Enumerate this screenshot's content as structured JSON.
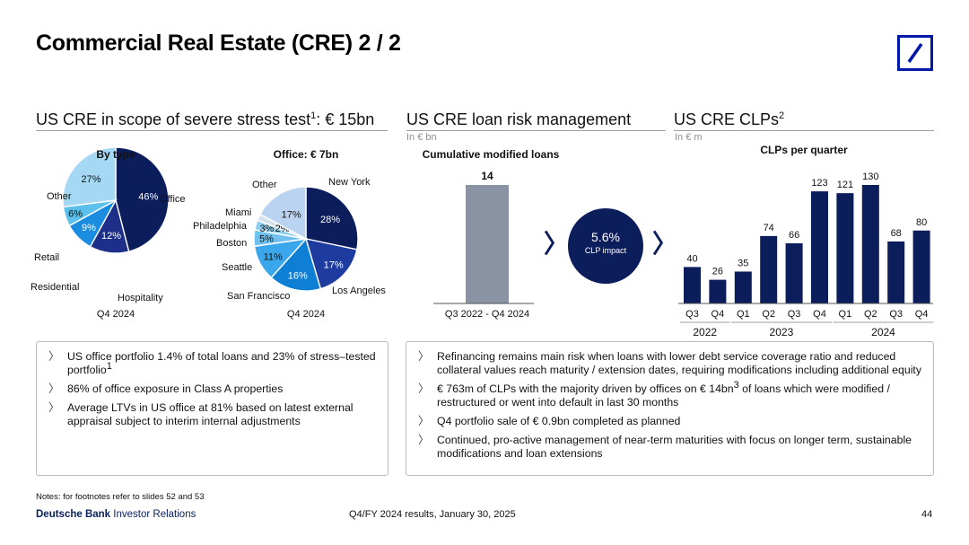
{
  "title": "Commercial Real Estate (CRE) 2 / 2",
  "sections": {
    "left": {
      "heading": "US CRE in scope of severe stress test",
      "sup": "1",
      "heading_tail": ": € 15bn"
    },
    "middle": {
      "heading": "US CRE loan risk management",
      "unit": "In € bn"
    },
    "right": {
      "heading": "US CRE CLPs",
      "sup": "2",
      "unit": "In € m"
    }
  },
  "chart_data": [
    {
      "type": "pie",
      "title": "By type",
      "caption": "Q4 2024",
      "slices": [
        {
          "label": "Office",
          "value": 46,
          "pct_label": "46%",
          "color": "#0c1d5c"
        },
        {
          "label": "Hospitality",
          "value": 12,
          "pct_label": "12%",
          "color": "#1e2f8a"
        },
        {
          "label": "Residential",
          "value": 9,
          "pct_label": "9%",
          "color": "#1a8de0"
        },
        {
          "label": "Retail",
          "value": 6,
          "pct_label": "6%",
          "color": "#5bc0eb"
        },
        {
          "label": "Other",
          "value": 27,
          "pct_label": "27%",
          "color": "#a5d8f3"
        }
      ]
    },
    {
      "type": "pie",
      "title": "Office: € 7bn",
      "caption": "Q4 2024",
      "slices": [
        {
          "label": "New York",
          "value": 28,
          "pct_label": "28%",
          "color": "#0c1d5c"
        },
        {
          "label": "Los Angeles",
          "value": 17,
          "pct_label": "17%",
          "color": "#1e3ca0"
        },
        {
          "label": "San Francisco",
          "value": 16,
          "pct_label": "16%",
          "color": "#0f7fd6"
        },
        {
          "label": "Seattle",
          "value": 11,
          "pct_label": "11%",
          "color": "#3aa7ec"
        },
        {
          "label": "Boston",
          "value": 5,
          "pct_label": "5%",
          "color": "#6fc2f0"
        },
        {
          "label": "Philadelphia",
          "value": 3,
          "pct_label": "3%",
          "color": "#8fcff2"
        },
        {
          "label": "Miami",
          "value": 2,
          "pct_label": "2%",
          "color": "#d6e2ea"
        },
        {
          "label": "Other",
          "value": 17,
          "pct_label": "17%",
          "color": "#b9d3f0"
        }
      ]
    },
    {
      "type": "bar",
      "title": "Cumulative modified loans",
      "categories": [
        "Q3 2022 - Q4 2024"
      ],
      "values": [
        14
      ],
      "color": "#8a93a3",
      "ylim": [
        0,
        15
      ]
    },
    {
      "type": "bar",
      "title": "CLPs per quarter",
      "categories": [
        "Q3",
        "Q4",
        "Q1",
        "Q2",
        "Q3",
        "Q4",
        "Q1",
        "Q2",
        "Q3",
        "Q4"
      ],
      "groups": [
        {
          "label": "2022",
          "count": 2
        },
        {
          "label": "2023",
          "count": 4
        },
        {
          "label": "2024",
          "count": 4
        }
      ],
      "values": [
        40,
        26,
        35,
        74,
        66,
        123,
        121,
        130,
        68,
        80
      ],
      "color": "#0c1d5c",
      "ylim": [
        0,
        140
      ]
    }
  ],
  "impact": {
    "value": "5.6%",
    "label": "CLP impact"
  },
  "chevron": "〉",
  "left_bullets": [
    {
      "text": "US office portfolio 1.4% of total loans and 23% of stress–tested portfolio",
      "sup": "1"
    },
    {
      "text": "86% of office exposure in Class A properties",
      "sup": ""
    },
    {
      "text": "Average LTVs in US office at 81% based on latest external appraisal subject to interim internal adjustments",
      "sup": ""
    }
  ],
  "right_bullets": [
    {
      "text": "Refinancing remains main risk when loans with lower debt service coverage ratio and reduced collateral values reach maturity / extension dates, requiring modifications including additional equity"
    },
    {
      "text_a": "€ 763m of CLPs with the majority driven by offices on € 14bn",
      "sup": "3",
      "text_b": " of loans which were modified / restructured or went into default in last 30 months"
    },
    {
      "text": "Q4 portfolio sale of € 0.9bn completed as planned"
    },
    {
      "text": "Continued, pro-active management of near-term maturities with focus on longer term, sustainable modifications and loan extensions"
    }
  ],
  "footer": {
    "notes": "Notes: for footnotes refer to slides 52 and 53",
    "brand_bold": "Deutsche Bank",
    "brand_rest": " Investor Relations",
    "center": "Q4/FY 2024 results, January 30, 2025",
    "page": "44"
  }
}
